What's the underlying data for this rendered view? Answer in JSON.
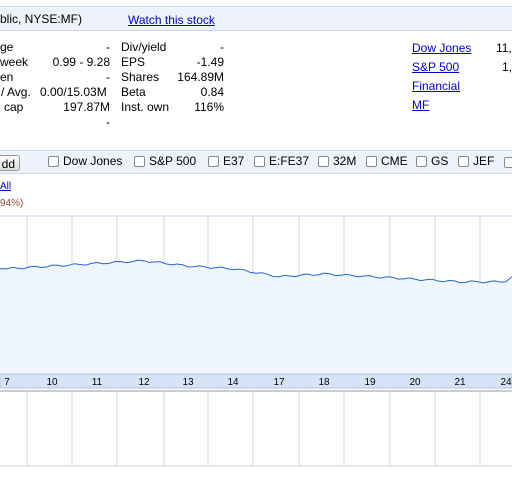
{
  "header": {
    "title": "blic, NYSE:MF)",
    "watch_label": "Watch this stock"
  },
  "stats_left": [
    {
      "label": "ge",
      "value": "-"
    },
    {
      "label": "week",
      "value": "0.99 - 9.28"
    },
    {
      "label": "en",
      "value": "-"
    },
    {
      "label": "/ Avg.",
      "value": "0.00/15.03M"
    },
    {
      "label": "cap",
      "value": "197.87M"
    },
    {
      "label": "",
      "value": "-"
    }
  ],
  "stats_right": [
    {
      "label": "Div/yield",
      "value": "-"
    },
    {
      "label": "EPS",
      "value": "-1.49"
    },
    {
      "label": "Shares",
      "value": "164.89M"
    },
    {
      "label": "Beta",
      "value": "0.84"
    },
    {
      "label": "Inst. own",
      "value": "116%"
    }
  ],
  "indices": [
    {
      "label": "Dow Jones",
      "value": "11,"
    },
    {
      "label": "S&P 500",
      "value": "1,"
    },
    {
      "label": "Financial",
      "value": ""
    },
    {
      "label": "MF",
      "value": ""
    }
  ],
  "compare": {
    "add_label": "dd",
    "items": [
      "Dow Jones",
      "S&P 500",
      "E37",
      "E:FE37",
      "32M",
      "CME",
      "GS",
      "JEF"
    ]
  },
  "chart_links": {
    "all_label": "All",
    "change_label": "94%)"
  },
  "colors": {
    "line": "#2266cc",
    "fill": "#eef5fc",
    "axis_band": "#d5e5f7",
    "grid": "#d4d4d4"
  },
  "chart_data": {
    "type": "line",
    "categories": [
      "7",
      "10",
      "11",
      "12",
      "13",
      "14",
      "17",
      "18",
      "19",
      "20",
      "21",
      "24"
    ],
    "series": [
      {
        "values": [
          1.0,
          1.01,
          1.02,
          1.03,
          1.01,
          1.0,
          0.97,
          0.98,
          0.97,
          0.96,
          0.95,
          0.95
        ]
      }
    ],
    "ylim": [
      0.6,
      1.2
    ],
    "grid": true
  }
}
